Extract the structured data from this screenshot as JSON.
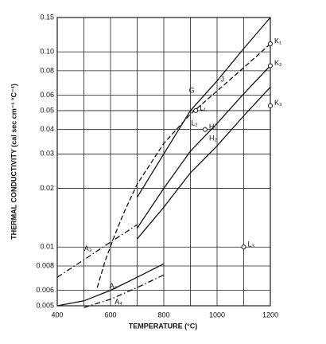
{
  "chart_data": {
    "type": "line",
    "xlabel": "TEMPERATURE (°C)",
    "ylabel": "THERMAL CONDUCTIVITY (cal sec cm⁻¹ °C⁻¹)",
    "xlim": [
      400,
      1200
    ],
    "ylim": [
      0.005,
      0.15
    ],
    "log_y": true,
    "grid": true,
    "xticks": [
      400,
      600,
      800,
      1000,
      1200
    ],
    "x_grid": [
      500,
      700,
      900,
      1100
    ],
    "yticks": [
      0.005,
      0.006,
      0.008,
      0.01,
      0.02,
      0.03,
      0.04,
      0.05,
      0.06,
      0.08,
      {
        "value": 0.1,
        "label": "0.10"
      },
      0.15
    ],
    "color": "#111111",
    "lines": [
      {
        "style": "dashed",
        "x": [
          550,
          580,
          610,
          650,
          700,
          800,
          900,
          1000,
          1100,
          1200
        ],
        "values": [
          0.0062,
          0.0085,
          0.011,
          0.015,
          0.021,
          0.034,
          0.048,
          0.063,
          0.083,
          0.11
        ]
      },
      {
        "style": "solid",
        "x": [
          700,
          800,
          900,
          1000,
          1100,
          1200
        ],
        "values": [
          0.018,
          0.03,
          0.05,
          0.071,
          0.104,
          0.15
        ]
      },
      {
        "style": "solid",
        "x": [
          700,
          800,
          900,
          1000,
          1100,
          1200
        ],
        "values": [
          0.0125,
          0.02,
          0.031,
          0.043,
          0.061,
          0.085
        ]
      },
      {
        "style": "solid",
        "x": [
          700,
          800,
          900,
          1000,
          1100,
          1200
        ],
        "values": [
          0.011,
          0.016,
          0.024,
          0.033,
          0.047,
          0.066
        ]
      },
      {
        "style": "dashdot",
        "x": [
          400,
          500,
          600,
          700
        ],
        "values": [
          0.007,
          0.0086,
          0.0106,
          0.013
        ]
      },
      {
        "style": "solid",
        "x": [
          400,
          500,
          600,
          700,
          800
        ],
        "values": [
          0.005,
          0.0053,
          0.006,
          0.007,
          0.0082
        ]
      },
      {
        "style": "dashdot",
        "x": [
          500,
          600,
          700,
          800
        ],
        "values": [
          0.0049,
          0.0054,
          0.0062,
          0.0072
        ]
      }
    ],
    "points": [
      {
        "name": "K₁",
        "x": 1200,
        "y": 0.11
      },
      {
        "name": "K₂",
        "x": 1200,
        "y": 0.085
      },
      {
        "name": "K₃",
        "x": 1200,
        "y": 0.053
      },
      {
        "name": "L₁",
        "x": 920,
        "y": 0.05
      },
      {
        "name": "H₁",
        "x": 955,
        "y": 0.04
      },
      {
        "name": "L₃",
        "x": 1100,
        "y": 0.01
      }
    ],
    "annotations": [
      {
        "text": "G",
        "x": 905,
        "y": 0.063
      },
      {
        "text": "J",
        "x": 1020,
        "y": 0.072
      },
      {
        "text": "L₂",
        "x": 915,
        "y": 0.043
      },
      {
        "text": "H₂",
        "x": 985,
        "y": 0.036
      },
      {
        "text": "A₃",
        "x": 515,
        "y": 0.0098
      },
      {
        "text": "A₂",
        "x": 610,
        "y": 0.0063
      },
      {
        "text": "A₄",
        "x": 630,
        "y": 0.0052
      }
    ]
  }
}
